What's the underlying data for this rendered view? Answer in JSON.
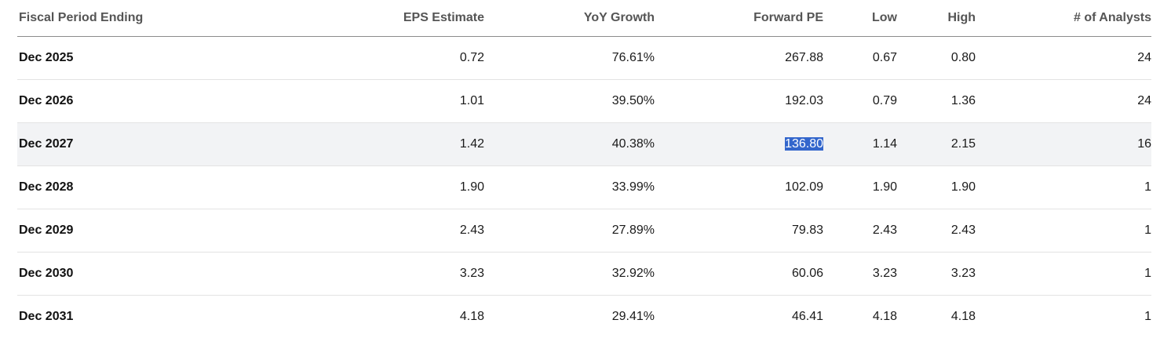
{
  "table": {
    "headers": {
      "period": "Fiscal Period Ending",
      "eps": "EPS Estimate",
      "yoy": "YoY Growth",
      "fpe": "Forward PE",
      "low": "Low",
      "high": "High",
      "analysts": "# of Analysts"
    },
    "rows": [
      {
        "period": "Dec 2025",
        "eps": "0.72",
        "yoy": "76.61%",
        "fpe": "267.88",
        "low": "0.67",
        "high": "0.80",
        "analysts": "24"
      },
      {
        "period": "Dec 2026",
        "eps": "1.01",
        "yoy": "39.50%",
        "fpe": "192.03",
        "low": "0.79",
        "high": "1.36",
        "analysts": "24"
      },
      {
        "period": "Dec 2027",
        "eps": "1.42",
        "yoy": "40.38%",
        "fpe": "136.80",
        "low": "1.14",
        "high": "2.15",
        "analysts": "16"
      },
      {
        "period": "Dec 2028",
        "eps": "1.90",
        "yoy": "33.99%",
        "fpe": "102.09",
        "low": "1.90",
        "high": "1.90",
        "analysts": "1"
      },
      {
        "period": "Dec 2029",
        "eps": "2.43",
        "yoy": "27.89%",
        "fpe": "79.83",
        "low": "2.43",
        "high": "2.43",
        "analysts": "1"
      },
      {
        "period": "Dec 2030",
        "eps": "3.23",
        "yoy": "32.92%",
        "fpe": "60.06",
        "low": "3.23",
        "high": "3.23",
        "analysts": "1"
      },
      {
        "period": "Dec 2031",
        "eps": "4.18",
        "yoy": "29.41%",
        "fpe": "46.41",
        "low": "4.18",
        "high": "4.18",
        "analysts": "1"
      }
    ],
    "hovered_row_index": 2,
    "selected_text_cell": {
      "row": 2,
      "column": "fpe"
    }
  },
  "colors": {
    "header_text": "#555555",
    "header_border": "#8c8c8c",
    "row_border": "#e3e3e3",
    "hover_bg": "#f2f3f5",
    "selection_bg": "#3366cc"
  }
}
